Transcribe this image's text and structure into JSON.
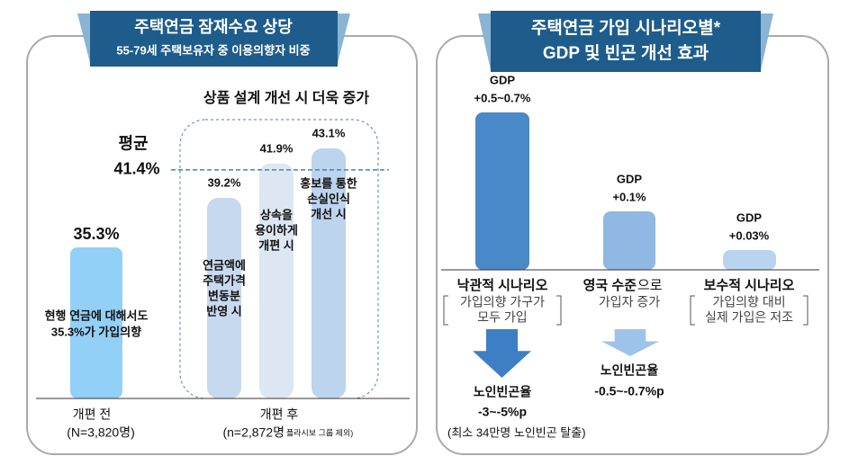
{
  "chart_data": {
    "type": "bar",
    "title": "주택연금 잠재수요 상당",
    "subtitle": "55-79세 주택보유자 중 이용의향자 비중",
    "annotation": "상품 설계 개선 시 더욱 증가",
    "categories": [
      [
        "현행 연금에 대해서도",
        "35.3%가 가입의향"
      ],
      [
        "연금액에",
        "주택가격",
        "변동분",
        "반영 시"
      ],
      [
        "상속을",
        "용이하게",
        "개편 시"
      ],
      [
        "홍보를 통한",
        "손실인식",
        "개선 시"
      ]
    ],
    "values": [
      35.3,
      39.2,
      41.9,
      43.1
    ],
    "value_labels": [
      "35.3%",
      "39.2%",
      "41.9%",
      "43.1%"
    ],
    "colors": [
      "#92d0f7",
      "#c7d9ee",
      "#dde7f3",
      "#bcd4ee"
    ],
    "ylim": [
      23.4,
      46
    ],
    "average": {
      "label": "평균",
      "value": 41.4,
      "value_label": "41.4%"
    },
    "groups": [
      {
        "label": "개편 전",
        "note": "(N=3,820명)"
      },
      {
        "label": "개편 후",
        "note": "(n=2,872명",
        "footnote": "플라시보 그룹 제외)"
      }
    ]
  },
  "scenario_panel": {
    "title": [
      "주택연금 가입 시나리오별*",
      "GDP 및 빈곤 개선 효과"
    ],
    "scenarios": [
      {
        "gdp": [
          "GDP",
          "+0.5~0.7%"
        ],
        "name": [
          "낙관적 시나리오"
        ],
        "desc": [
          "가입의향 가구가",
          "모두 가입"
        ],
        "poverty": [
          "노인빈곤율",
          "-3~-5%p"
        ]
      },
      {
        "gdp": [
          "GDP",
          "+0.1%"
        ],
        "name": [
          "영국 수준",
          "으로"
        ],
        "desc": [
          "가입자 증가"
        ],
        "poverty": [
          "노인빈곤율",
          "-0.5~-0.7%p"
        ]
      },
      {
        "gdp": [
          "GDP",
          "+0.03%"
        ],
        "name": [
          "보수적 시나리오"
        ],
        "desc": [
          "가입의향 대비",
          "실제 가입은 저조"
        ]
      }
    ],
    "note": "(최소 34만명 노인빈곤 탈출)"
  }
}
